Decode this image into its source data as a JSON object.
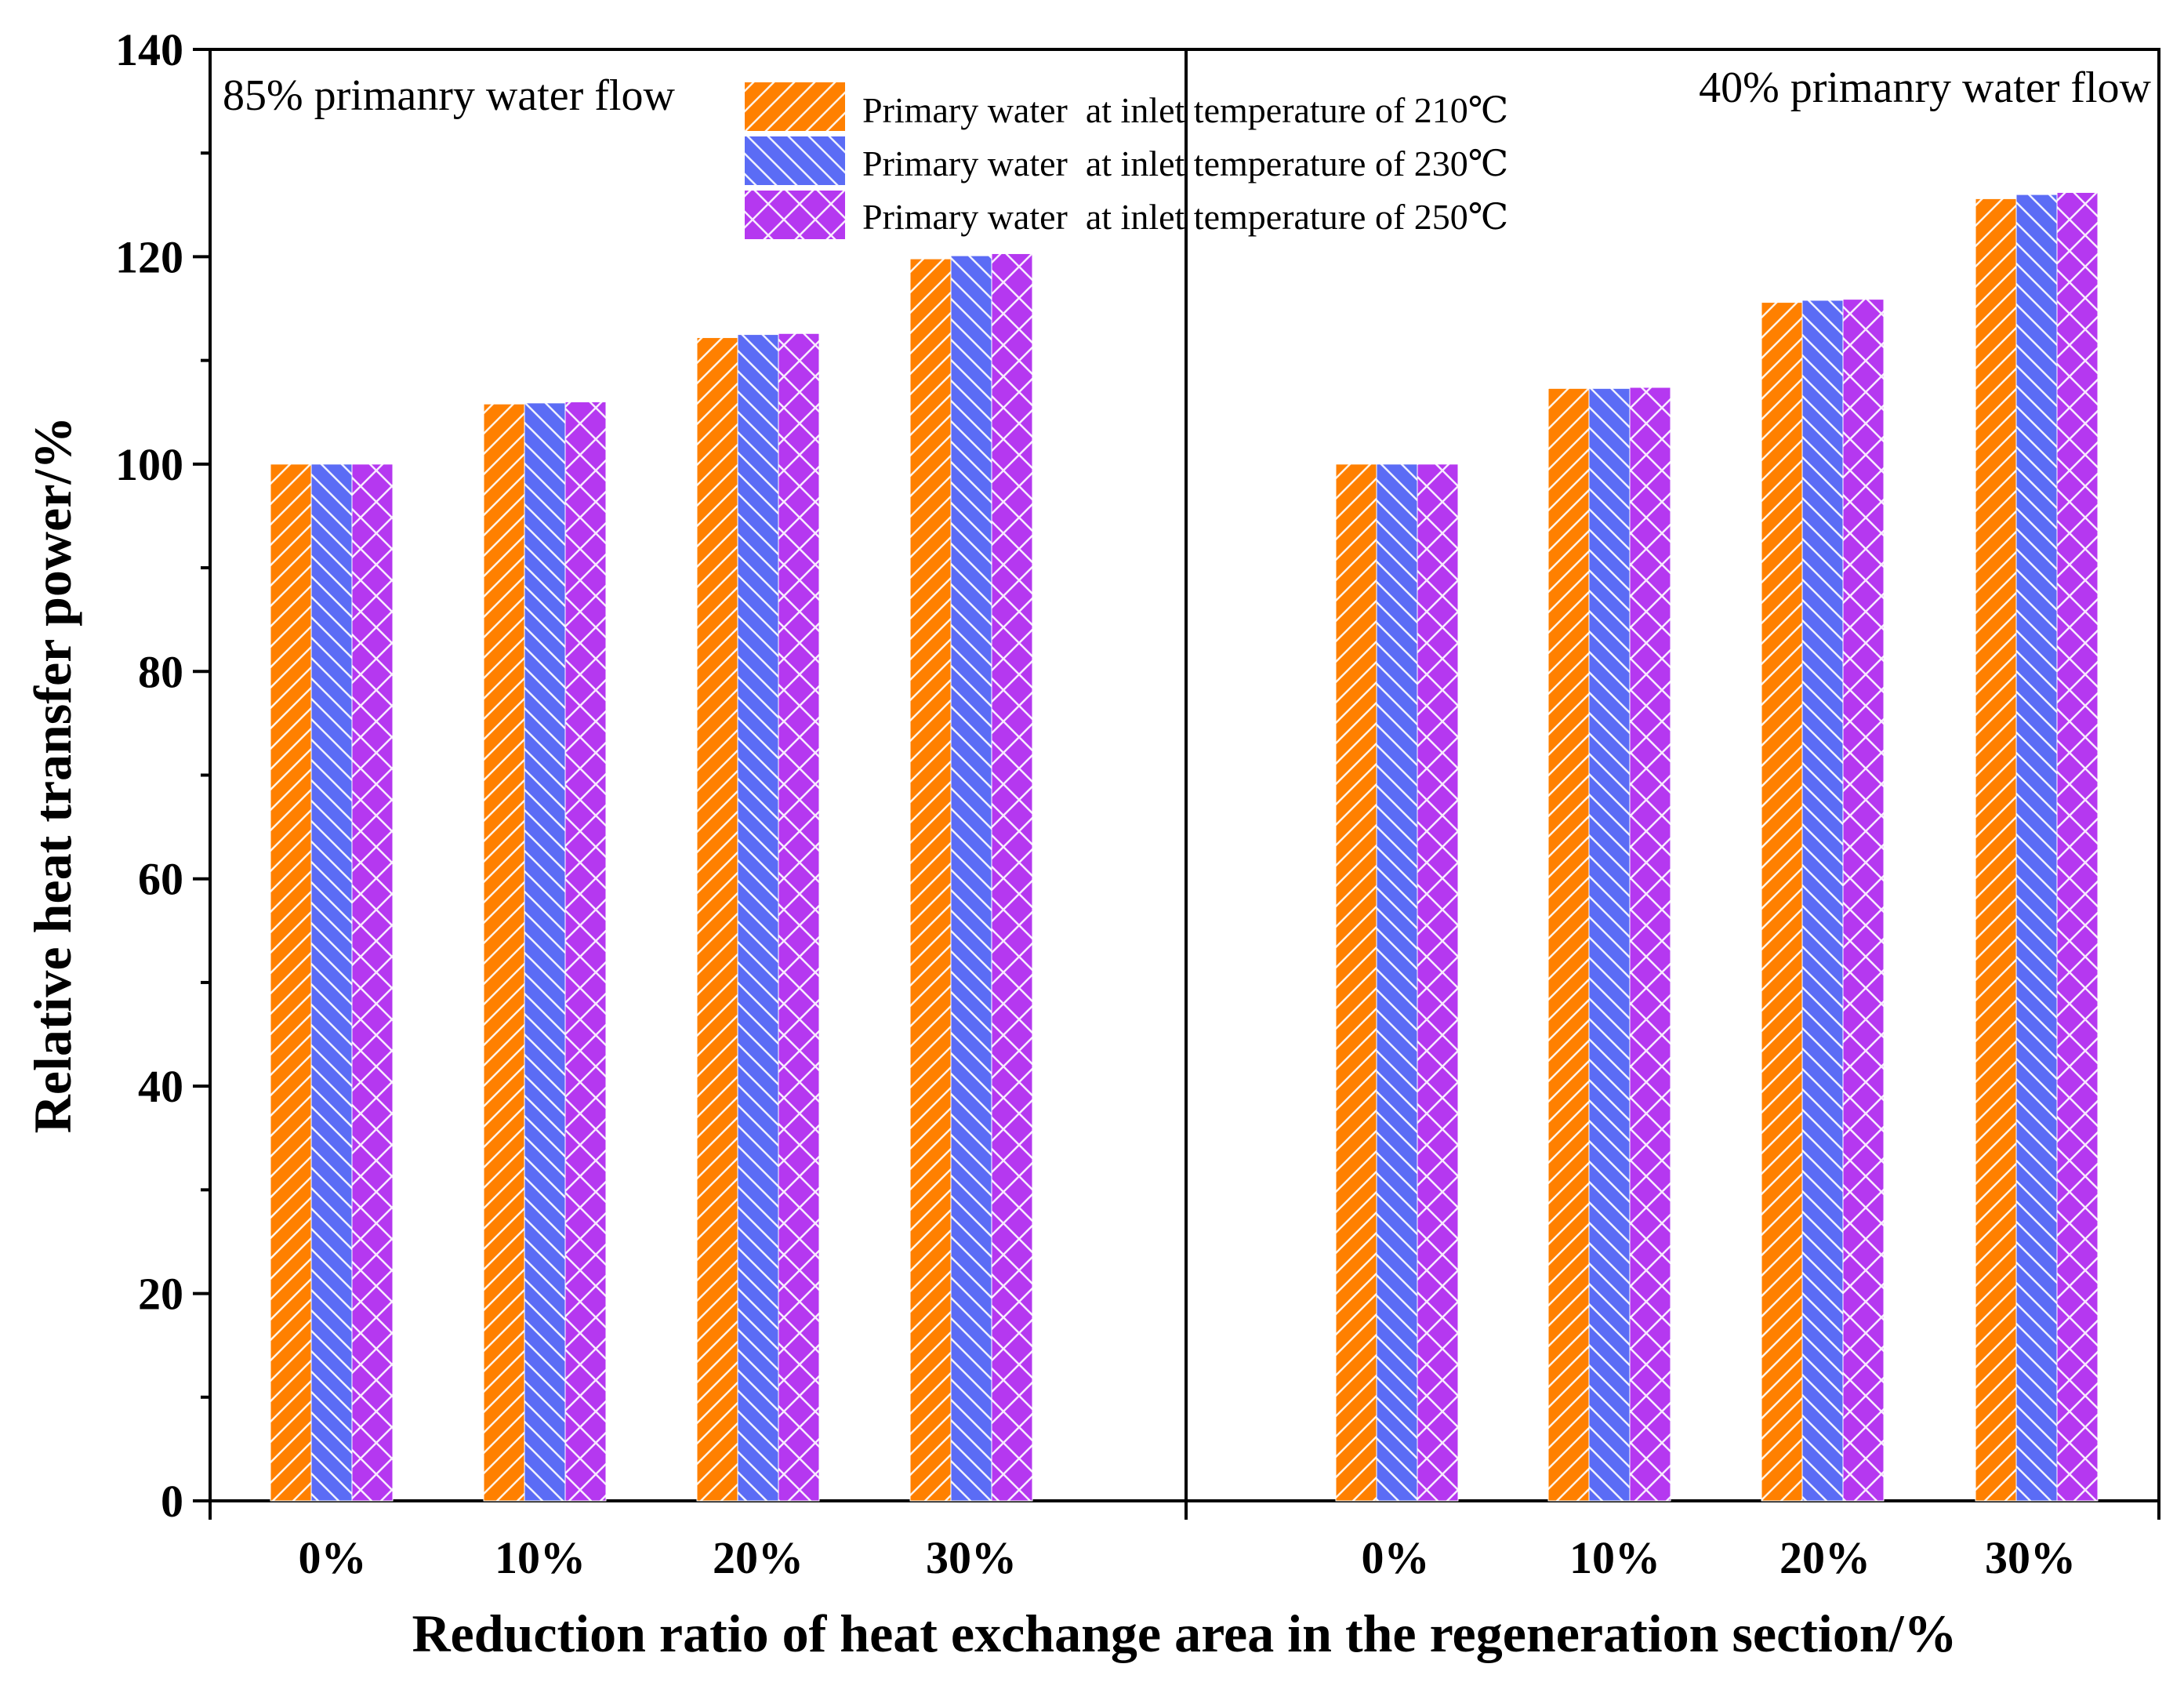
{
  "chart_data": {
    "type": "bar",
    "ylabel": "Relative heat transfer power/%",
    "xlabel": "Reduction ratio of heat exchange area in the regeneration section/%",
    "ylim": [
      0,
      140
    ],
    "yticks": [
      0,
      20,
      40,
      60,
      80,
      100,
      120,
      140
    ],
    "groups": [
      {
        "label": "85% primanry water flow",
        "categories": [
          "0%",
          "10%",
          "20%",
          "30%"
        ],
        "series": [
          {
            "name": "Primary water  at inlet temperature of 210℃",
            "values": [
              100,
              105.8,
              112.2,
              119.8
            ]
          },
          {
            "name": "Primary water  at inlet temperature of 230℃",
            "values": [
              100,
              105.9,
              112.5,
              120.1
            ]
          },
          {
            "name": "Primary water  at inlet temperature of 250℃",
            "values": [
              100,
              106.0,
              112.6,
              120.3
            ]
          }
        ]
      },
      {
        "label": "40% primanry water flow",
        "categories": [
          "0%",
          "10%",
          "20%",
          "30%"
        ],
        "series": [
          {
            "name": "Primary water  at inlet temperature of 210℃",
            "values": [
              100,
              107.3,
              115.6,
              125.6
            ]
          },
          {
            "name": "Primary water  at inlet temperature of 230℃",
            "values": [
              100,
              107.3,
              115.8,
              126.0
            ]
          },
          {
            "name": "Primary water  at inlet temperature of 250℃",
            "values": [
              100,
              107.4,
              115.9,
              126.2
            ]
          }
        ]
      }
    ],
    "legend": [
      {
        "name": "Primary water  at inlet temperature of 210℃",
        "color": "#FF8000",
        "pattern": "forward-slash"
      },
      {
        "name": "Primary water  at inlet temperature of 230℃",
        "color": "#5B6CF5",
        "pattern": "back-slash"
      },
      {
        "name": "Primary water  at inlet temperature of 250℃",
        "color": "#B538F0",
        "pattern": "crosshatch"
      }
    ],
    "legend_position": "top-center"
  }
}
